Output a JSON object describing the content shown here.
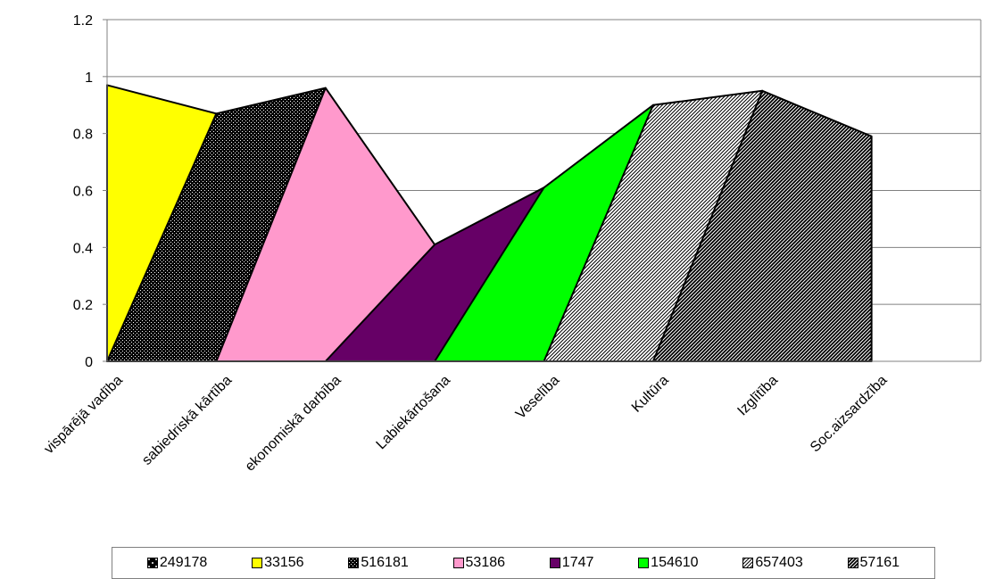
{
  "chart_data": {
    "type": "area",
    "categories": [
      "vispārējā vadība",
      "sabiedriskā kārtība",
      "ekonomiskā darbība",
      "Labiekārtošana",
      "Veselība",
      "Kultūra",
      "Izglītība",
      "Soc.aizsardzība"
    ],
    "series": [
      {
        "name": "249178",
        "values": [
          0.97,
          0,
          0,
          0,
          0,
          0,
          0,
          0
        ],
        "color": "#000000",
        "pattern": "dots-white-on-black"
      },
      {
        "name": "33156",
        "values": [
          0.97,
          0.87,
          0,
          0,
          0,
          0,
          0,
          0
        ],
        "color": "#ffff00",
        "pattern": "solid"
      },
      {
        "name": "516181",
        "values": [
          0,
          0.87,
          0.96,
          0,
          0,
          0,
          0,
          0
        ],
        "color": "#000000",
        "pattern": "dense-dots"
      },
      {
        "name": "53186",
        "values": [
          0,
          0,
          0.96,
          0.41,
          0,
          0,
          0,
          0
        ],
        "color": "#ff99cc",
        "pattern": "solid"
      },
      {
        "name": "1747",
        "values": [
          0,
          0,
          0,
          0.41,
          0.61,
          0,
          0,
          0
        ],
        "color": "#660066",
        "pattern": "solid"
      },
      {
        "name": "154610",
        "values": [
          0,
          0,
          0,
          0,
          0.61,
          0.9,
          0,
          0
        ],
        "color": "#00ff00",
        "pattern": "solid"
      },
      {
        "name": "657403",
        "values": [
          0,
          0,
          0,
          0,
          0,
          0.9,
          0.95,
          0
        ],
        "color": "#ffffff",
        "pattern": "diagonal-stripes"
      },
      {
        "name": "57161",
        "values": [
          0,
          0,
          0,
          0,
          0,
          0,
          0.95,
          0.79
        ],
        "color": "#000000",
        "pattern": "dense-diagonal"
      }
    ],
    "y_ticks": [
      "0",
      "0.2",
      "0.4",
      "0.6",
      "0.8",
      "1",
      "1.2"
    ],
    "ylim": [
      0,
      1.2
    ],
    "grid": true,
    "legend_position": "bottom"
  }
}
